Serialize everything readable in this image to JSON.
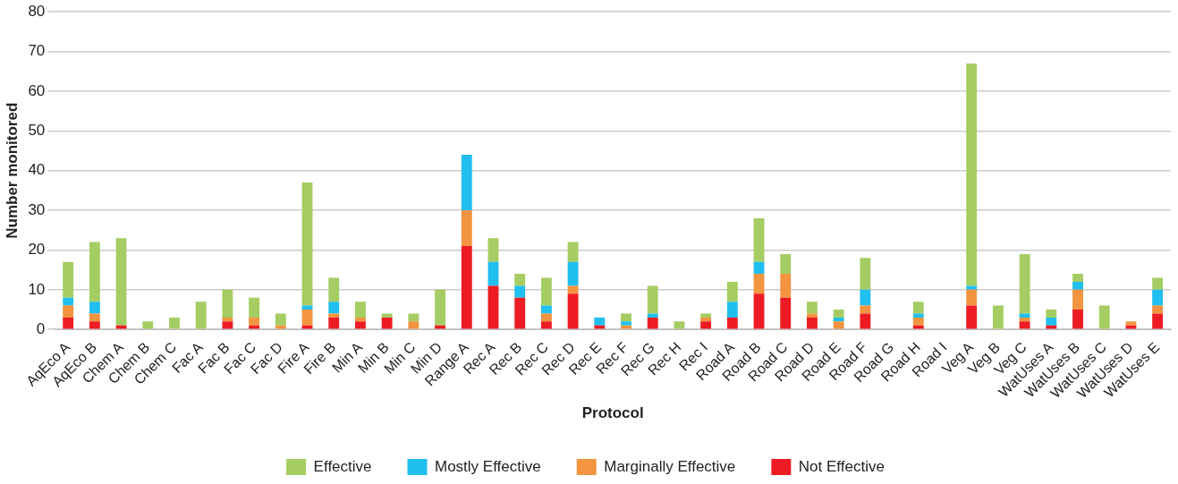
{
  "chart_data": {
    "type": "bar",
    "stacked": true,
    "xlabel": "Protocol",
    "ylabel": "Number monitored",
    "ylim": [
      0,
      80
    ],
    "yticks": [
      0,
      10,
      20,
      30,
      40,
      50,
      60,
      70,
      80
    ],
    "grid": "y",
    "legend": "bottom",
    "categories": [
      "AqEco A",
      "AqEco B",
      "Chem A",
      "Chem B",
      "Chem C",
      "Fac A",
      "Fac B",
      "Fac C",
      "Fac D",
      "Fire A",
      "Fire B",
      "Min A",
      "Min B",
      "Min C",
      "Min D",
      "Range A",
      "Rec A",
      "Rec B",
      "Rec C",
      "Rec D",
      "Rec E",
      "Rec F",
      "Rec G",
      "Rec H",
      "Rec I",
      "Road A",
      "Road B",
      "Road C",
      "Road D",
      "Road E",
      "Road F",
      "Road G",
      "Road H",
      "Road I",
      "Veg A",
      "Veg B",
      "Veg C",
      "WatUses A",
      "WatUses B",
      "WatUses C",
      "WatUses D",
      "WatUses E"
    ],
    "series": [
      {
        "name": "Not Effective",
        "color": "#ed1c24",
        "values": [
          3,
          2,
          1,
          0,
          0,
          0,
          2,
          1,
          0,
          1,
          3,
          2,
          3,
          0,
          1,
          21,
          11,
          8,
          2,
          9,
          1,
          0,
          3,
          0,
          2,
          3,
          9,
          8,
          3,
          0,
          4,
          0,
          1,
          0,
          6,
          0,
          2,
          1,
          5,
          0,
          1,
          4
        ]
      },
      {
        "name": "Marginally Effective",
        "color": "#f39440",
        "values": [
          3,
          2,
          0,
          0,
          0,
          0,
          1,
          2,
          1,
          4,
          1,
          1,
          0,
          2,
          0,
          9,
          0,
          0,
          2,
          2,
          0,
          1,
          0,
          0,
          1,
          0,
          5,
          6,
          1,
          2,
          2,
          0,
          2,
          0,
          4,
          0,
          1,
          0,
          5,
          0,
          1,
          2
        ]
      },
      {
        "name": "Mostly Effective",
        "color": "#20bfef",
        "values": [
          2,
          3,
          0,
          0,
          0,
          0,
          0,
          0,
          0,
          1,
          3,
          0,
          0,
          0,
          0,
          14,
          6,
          3,
          2,
          6,
          2,
          1,
          1,
          0,
          0,
          4,
          3,
          0,
          0,
          1,
          4,
          0,
          1,
          0,
          1,
          0,
          1,
          2,
          2,
          0,
          0,
          4
        ]
      },
      {
        "name": "Effective",
        "color": "#a5cd63",
        "values": [
          9,
          15,
          22,
          2,
          3,
          7,
          7,
          5,
          3,
          31,
          6,
          4,
          1,
          2,
          9,
          0,
          6,
          3,
          7,
          5,
          0,
          2,
          7,
          2,
          1,
          5,
          11,
          5,
          3,
          2,
          8,
          0,
          3,
          0,
          56,
          6,
          15,
          2,
          2,
          6,
          0,
          3
        ]
      }
    ]
  }
}
